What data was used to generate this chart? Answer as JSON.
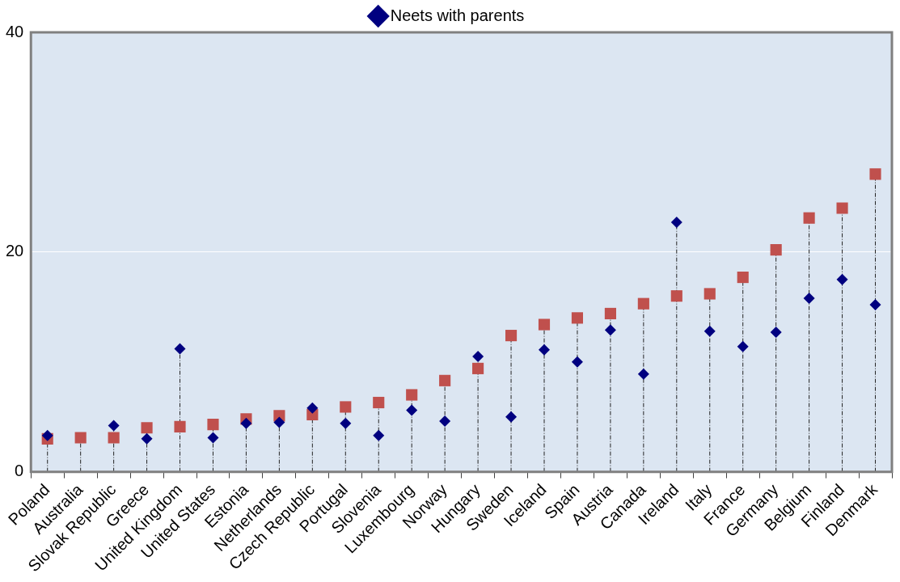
{
  "chart_data": {
    "type": "scatter",
    "categories": [
      "Poland",
      "Australia",
      "Slovak Republic",
      "Greece",
      "United Kingdom",
      "United States",
      "Estonia",
      "Netherlands",
      "Czech Republic",
      "Portugal",
      "Slovenia",
      "Luxembourg",
      "Norway",
      "Hungary",
      "Sweden",
      "Iceland",
      "Spain",
      "Austria",
      "Canada",
      "Ireland",
      "Italy",
      "France",
      "Germany",
      "Belgium",
      "Finland",
      "Denmark"
    ],
    "series": [
      {
        "name": "Neets with parents",
        "color": "#000080",
        "marker": "diamond",
        "values": [
          3.3,
          null,
          4.2,
          3.0,
          11.2,
          3.1,
          4.4,
          4.5,
          5.8,
          4.4,
          3.3,
          5.6,
          4.6,
          10.5,
          5.0,
          11.1,
          10.0,
          12.9,
          8.9,
          22.7,
          12.8,
          11.4,
          12.7,
          15.8,
          17.5,
          15.2
        ]
      },
      {
        "color": "#c0504d",
        "marker": "square",
        "values": [
          3.0,
          3.1,
          3.1,
          4.0,
          4.1,
          4.3,
          4.8,
          5.1,
          5.2,
          5.9,
          6.3,
          7.0,
          8.3,
          9.4,
          12.4,
          13.4,
          14.0,
          14.4,
          15.3,
          16.0,
          16.2,
          17.7,
          20.2,
          23.1,
          24.0,
          27.1
        ]
      }
    ],
    "ylim": [
      0,
      40
    ],
    "yticks": [
      0,
      20,
      40
    ],
    "grid": "y",
    "legend": "top"
  }
}
